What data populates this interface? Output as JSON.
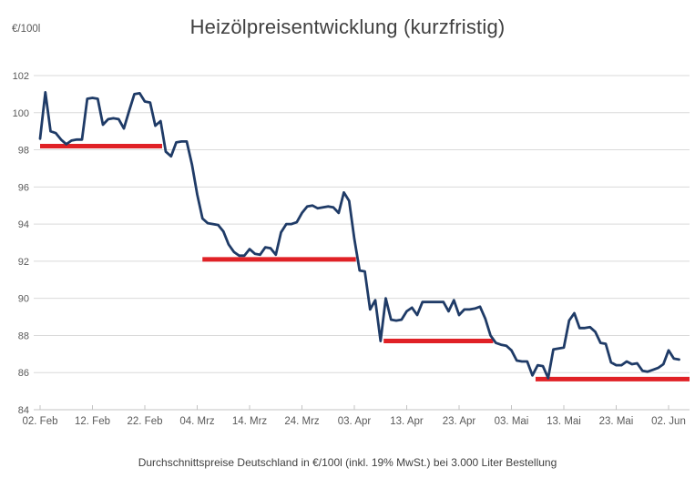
{
  "header": {
    "unit_label": "€/100l",
    "title": "Heizölpreisentwicklung (kurzfristig)"
  },
  "footer": {
    "caption": "Durchschnittspreise Deutschland in €/100l (inkl. 19% MwSt.) bei 3.000 Liter Bestellung"
  },
  "colors": {
    "price_line": "#1f3b67",
    "support_line": "#e02126",
    "gridline": "#dadada",
    "axis": "#c3c3c3",
    "axis_text": "#595959",
    "title_text": "#404040"
  },
  "chart_data": {
    "type": "line",
    "title": "Heizölpreisentwicklung (kurzfristig)",
    "ylabel": "€/100l",
    "ylim": [
      84,
      102
    ],
    "yticks": [
      84,
      86,
      88,
      90,
      92,
      94,
      96,
      98,
      100,
      102
    ],
    "xtick_labels": [
      "02. Feb",
      "12. Feb",
      "22. Feb",
      "04. Mrz",
      "14. Mrz",
      "24. Mrz",
      "03. Apr",
      "13. Apr",
      "23. Apr",
      "03. Mai",
      "13. Mai",
      "23. Mai",
      "02. Jun"
    ],
    "xtick_interval_days": 10,
    "x_total_days": 124,
    "grid": "horizontal-only",
    "legend": "none",
    "series": [
      {
        "name": "Heizölpreis Deutschland (€/100l)",
        "color": "#1f3b67",
        "start_label": "02. Feb",
        "sample_interval": "daily",
        "values": [
          98.6,
          101.1,
          99.0,
          98.9,
          98.55,
          98.3,
          98.5,
          98.55,
          98.55,
          100.75,
          100.8,
          100.75,
          99.35,
          99.65,
          99.7,
          99.65,
          99.15,
          100.1,
          101.0,
          101.05,
          100.6,
          100.55,
          99.3,
          99.55,
          97.9,
          97.65,
          98.4,
          98.45,
          98.45,
          97.2,
          95.6,
          94.3,
          94.05,
          94.0,
          93.95,
          93.6,
          92.9,
          92.5,
          92.3,
          92.3,
          92.65,
          92.4,
          92.35,
          92.75,
          92.7,
          92.35,
          93.55,
          94.0,
          94.0,
          94.1,
          94.6,
          94.95,
          95.0,
          94.85,
          94.9,
          94.95,
          94.9,
          94.6,
          95.7,
          95.25,
          93.2,
          91.5,
          91.45,
          89.4,
          89.9,
          87.7,
          90.0,
          88.85,
          88.8,
          88.85,
          89.3,
          89.5,
          89.1,
          89.8,
          89.8,
          89.8,
          89.8,
          89.8,
          89.3,
          89.9,
          89.1,
          89.4,
          89.4,
          89.45,
          89.55,
          88.9,
          88.0,
          87.6,
          87.5,
          87.45,
          87.2,
          86.65,
          86.6,
          86.6,
          85.85,
          86.4,
          86.35,
          85.7,
          87.25,
          87.3,
          87.35,
          88.8,
          89.2,
          88.4,
          88.4,
          88.45,
          88.2,
          87.6,
          87.55,
          86.55,
          86.4,
          86.4,
          86.6,
          86.45,
          86.5,
          86.1,
          86.05,
          86.15,
          86.25,
          86.45,
          87.2,
          86.75,
          86.7
        ]
      }
    ],
    "support_levels": [
      {
        "value": 98.2,
        "start_day": 0,
        "end_day": 23.3,
        "color": "#e02126"
      },
      {
        "value": 92.1,
        "start_day": 31,
        "end_day": 60.3,
        "color": "#e02126"
      },
      {
        "value": 87.7,
        "start_day": 65.6,
        "end_day": 86.5,
        "color": "#e02126"
      },
      {
        "value": 85.65,
        "start_day": 94.6,
        "end_day": 124,
        "color": "#e02126"
      }
    ]
  }
}
